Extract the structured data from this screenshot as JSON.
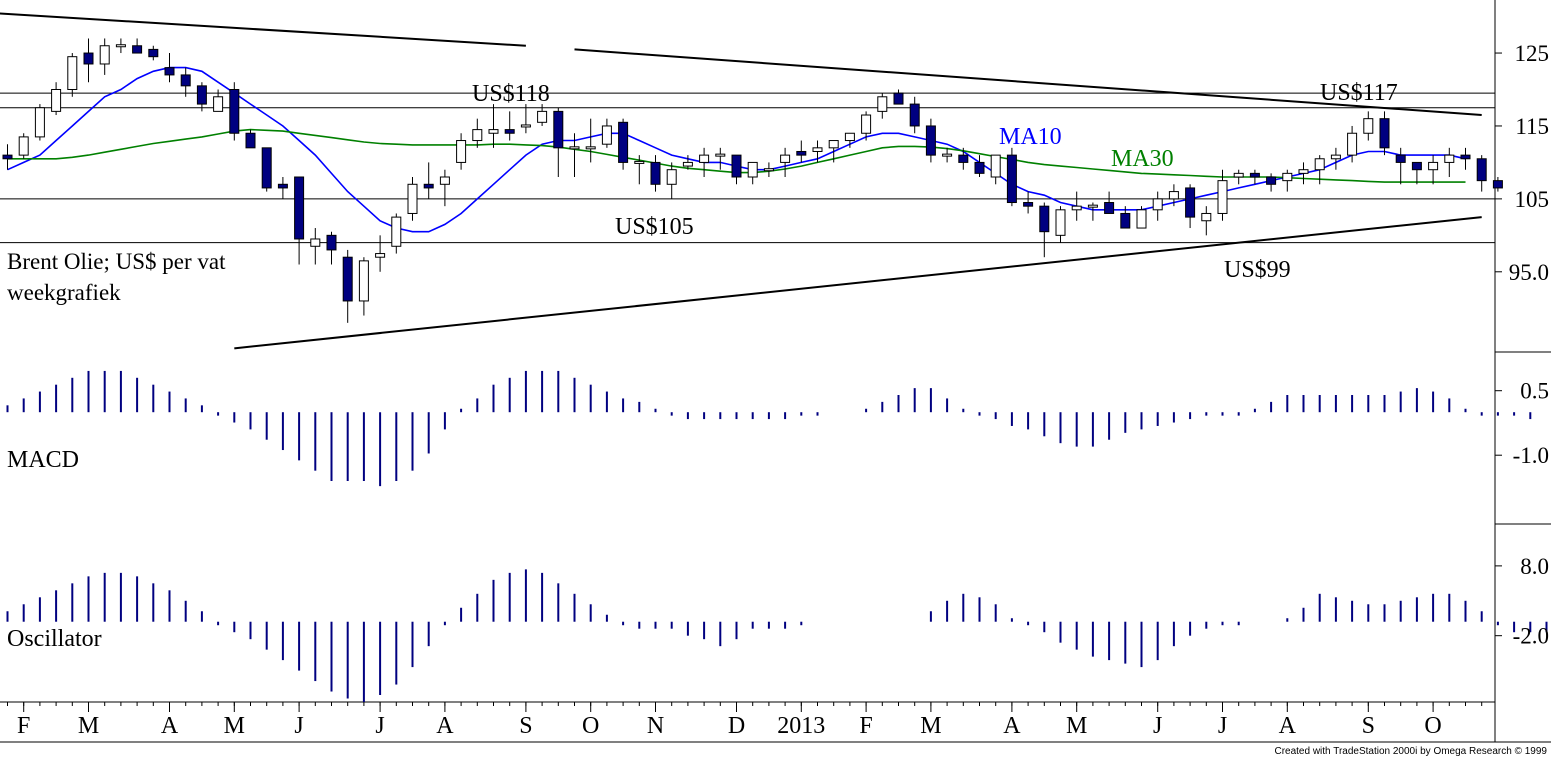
{
  "chart_data": [
    {
      "type": "candlestick",
      "panel": "price",
      "title": "Brent Olie; US$ per vat",
      "subtitle": "weekgrafiek",
      "y_ticks": [
        "125",
        "115",
        "105",
        "95.0"
      ],
      "y_tick_values": [
        125,
        115,
        105,
        95
      ],
      "ylim": [
        84,
        132
      ],
      "x_month_labels": [
        "F",
        "M",
        "A",
        "M",
        "J",
        "J",
        "A",
        "S",
        "O",
        "N",
        "D",
        "2013",
        "F",
        "M",
        "A",
        "M",
        "J",
        "J",
        "A",
        "S",
        "O"
      ],
      "x_month_weeks": [
        1,
        5,
        10,
        14,
        18,
        23,
        27,
        32,
        36,
        40,
        45,
        49,
        53,
        57,
        62,
        66,
        71,
        75,
        79,
        84,
        88
      ],
      "candles": [
        [
          111,
          112.5,
          109,
          110.5
        ],
        [
          111,
          114,
          110.5,
          113.5
        ],
        [
          113.5,
          118,
          113,
          117.5
        ],
        [
          117,
          121,
          116.5,
          120
        ],
        [
          120,
          125,
          119,
          124.5
        ],
        [
          125,
          127,
          121,
          123.5
        ],
        [
          123.5,
          127,
          122,
          126
        ],
        [
          126,
          127,
          125,
          126
        ],
        [
          126,
          127,
          125,
          125
        ],
        [
          125.5,
          126,
          124,
          124.5
        ],
        [
          123,
          125,
          121,
          122
        ],
        [
          122,
          123,
          119,
          120.5
        ],
        [
          120.5,
          121,
          117,
          118
        ],
        [
          117,
          120,
          117,
          119
        ],
        [
          120,
          121,
          113,
          114
        ],
        [
          114,
          114.5,
          112,
          112
        ],
        [
          112,
          112,
          106,
          106.5
        ],
        [
          107,
          108,
          105,
          106.5
        ],
        [
          108,
          108,
          96,
          99.5
        ],
        [
          98.5,
          101,
          96,
          99.5
        ],
        [
          100,
          100.5,
          96,
          98
        ],
        [
          97,
          98,
          88,
          91
        ],
        [
          91,
          97,
          89,
          96.5
        ],
        [
          97,
          100,
          95,
          97.5
        ],
        [
          98.5,
          103,
          97.5,
          102.5
        ],
        [
          103,
          108,
          102,
          107
        ],
        [
          107,
          110,
          105,
          106.5
        ],
        [
          107,
          109,
          104,
          108
        ],
        [
          110,
          114,
          109,
          113
        ],
        [
          113,
          116,
          112,
          114.5
        ],
        [
          114,
          118,
          112,
          114.5
        ],
        [
          114.5,
          117,
          113,
          114
        ],
        [
          115,
          118,
          114,
          115
        ],
        [
          115.5,
          118,
          115,
          117
        ],
        [
          117,
          117.5,
          108,
          112
        ],
        [
          112,
          114,
          108,
          112
        ],
        [
          112,
          116,
          110,
          112
        ],
        [
          112.5,
          116,
          112,
          115
        ],
        [
          115.5,
          116,
          109,
          110
        ],
        [
          110,
          111,
          107,
          110
        ],
        [
          110,
          111,
          106,
          107
        ],
        [
          107,
          110,
          105,
          109
        ],
        [
          109.5,
          111,
          109,
          110
        ],
        [
          110,
          112,
          108,
          111
        ],
        [
          111,
          112,
          109,
          111
        ],
        [
          111,
          111,
          107,
          108
        ],
        [
          108,
          110,
          107,
          110
        ],
        [
          109,
          110,
          108,
          109
        ],
        [
          110,
          112,
          108,
          111
        ],
        [
          111.5,
          113,
          110,
          111
        ],
        [
          111.5,
          113,
          110,
          112
        ],
        [
          112,
          113,
          110,
          113
        ],
        [
          113,
          114,
          112,
          114
        ],
        [
          114,
          117,
          113,
          116.5
        ],
        [
          117,
          119.5,
          116,
          119
        ],
        [
          119.5,
          120,
          118,
          118
        ],
        [
          118,
          119,
          114,
          115
        ],
        [
          115,
          116,
          110,
          111
        ],
        [
          111,
          112,
          110,
          111
        ],
        [
          111,
          112,
          109,
          110
        ],
        [
          110,
          111,
          108,
          108.5
        ],
        [
          108,
          111,
          107,
          111
        ],
        [
          111,
          112,
          104,
          104.5
        ],
        [
          104.5,
          106,
          103,
          104
        ],
        [
          104,
          104.5,
          97,
          100.5
        ],
        [
          100,
          104,
          99,
          103.5
        ],
        [
          103.5,
          106,
          102,
          104
        ],
        [
          104,
          104.5,
          102,
          104
        ],
        [
          104.5,
          106,
          103,
          103
        ],
        [
          103,
          104,
          101,
          101
        ],
        [
          101,
          104,
          101,
          103.5
        ],
        [
          103.5,
          106,
          102,
          105
        ],
        [
          105,
          107,
          104,
          106
        ],
        [
          106.5,
          107,
          101,
          102.5
        ],
        [
          102,
          104,
          100,
          103
        ],
        [
          103,
          109,
          102,
          107.5
        ],
        [
          108,
          109,
          107,
          108.5
        ],
        [
          108.5,
          109,
          107,
          108
        ],
        [
          108,
          108.5,
          106,
          107
        ],
        [
          107.5,
          109,
          106,
          108.5
        ],
        [
          108.5,
          110,
          107,
          109
        ],
        [
          109,
          111,
          107,
          110.5
        ],
        [
          110.5,
          112,
          109,
          111
        ],
        [
          111,
          115,
          110,
          114
        ],
        [
          114,
          117,
          113,
          116
        ],
        [
          116,
          117,
          111,
          112
        ],
        [
          111,
          112,
          107,
          110
        ],
        [
          110,
          110,
          107,
          109
        ],
        [
          109,
          111,
          107,
          110
        ],
        [
          110,
          112,
          108,
          111
        ],
        [
          111,
          112,
          109,
          110.5
        ],
        [
          110.5,
          111,
          106,
          107.5
        ],
        [
          107.5,
          108,
          106,
          106.5
        ]
      ],
      "series": [
        {
          "name": "MA10",
          "color": "#0000ff",
          "values": [
            109,
            110,
            111,
            113,
            115,
            117,
            119,
            120,
            121.5,
            122.5,
            123,
            123,
            122.5,
            121,
            119.5,
            118,
            116.5,
            115,
            113,
            111,
            108.5,
            106,
            104,
            102,
            101,
            100.5,
            100.5,
            101.5,
            103,
            105,
            107,
            109,
            111,
            112.5,
            113,
            113,
            113.5,
            114,
            114,
            113,
            112,
            111,
            110.5,
            110,
            110,
            109.5,
            109,
            109,
            109.5,
            110,
            110.5,
            111.5,
            112.5,
            113.5,
            114,
            114,
            113.5,
            113,
            112.5,
            111.5,
            110,
            108.5,
            107,
            106,
            105.5,
            104.5,
            104,
            103.5,
            103.5,
            103.5,
            103.5,
            104,
            104.5,
            105,
            105.5,
            106,
            106.5,
            107,
            107.5,
            108,
            108.5,
            109,
            110,
            111,
            111.5,
            111.5,
            111,
            111,
            111,
            111,
            110.5
          ]
        },
        {
          "name": "MA30",
          "color": "#008000",
          "values": [
            110.5,
            110.5,
            110.5,
            110.5,
            110.7,
            111,
            111.4,
            111.8,
            112.2,
            112.6,
            112.9,
            113.2,
            113.5,
            113.9,
            114.3,
            114.5,
            114.4,
            114.3,
            114,
            113.7,
            113.4,
            113.1,
            112.8,
            112.6,
            112.5,
            112.4,
            112.4,
            112.4,
            112.4,
            112.4,
            112.5,
            112.5,
            112.4,
            112.3,
            112.1,
            111.8,
            111.5,
            111.1,
            110.7,
            110.3,
            109.9,
            109.5,
            109.2,
            109,
            108.8,
            108.6,
            108.6,
            108.8,
            109.1,
            109.5,
            110,
            110.5,
            111,
            111.5,
            112,
            112.2,
            112.2,
            112.1,
            111.9,
            111.6,
            111.2,
            110.8,
            110.4,
            110,
            109.7,
            109.5,
            109.3,
            109.1,
            108.9,
            108.7,
            108.5,
            108.4,
            108.3,
            108.2,
            108.1,
            108,
            108,
            108,
            108,
            107.9,
            107.8,
            107.7,
            107.6,
            107.5,
            107.4,
            107.3,
            107.3,
            107.3,
            107.3,
            107.3,
            107.3
          ]
        }
      ],
      "annotations": [
        {
          "text": "US$118",
          "value": 118
        },
        {
          "text": "US$117",
          "value": 117
        },
        {
          "text": "US$105",
          "value": 105
        },
        {
          "text": "US$99",
          "value": 99
        },
        {
          "text": "MA10",
          "color": "#0000ff"
        },
        {
          "text": "MA30",
          "color": "#008000"
        }
      ],
      "horizontal_lines": [
        119.5,
        117.5,
        105,
        99
      ],
      "trendlines": [
        {
          "from": [
            -1,
            130.5
          ],
          "to": [
            32,
            126
          ]
        },
        {
          "from": [
            35,
            125.5
          ],
          "to": [
            91,
            116.5
          ]
        },
        {
          "from": [
            14,
            84.5
          ],
          "to": [
            91,
            102.5
          ]
        }
      ]
    },
    {
      "type": "histogram",
      "panel": "indicator",
      "label": "MACD",
      "color": "#000080",
      "y_ticks": [
        "0.5",
        "-1.0"
      ],
      "y_tick_values": [
        0.5,
        -1.0
      ],
      "ylim": [
        -2.6,
        1.4
      ],
      "values": [
        0.16,
        0.32,
        0.48,
        0.64,
        0.8,
        0.96,
        0.96,
        0.96,
        0.8,
        0.64,
        0.48,
        0.32,
        0.16,
        -0.08,
        -0.24,
        -0.4,
        -0.64,
        -0.88,
        -1.12,
        -1.36,
        -1.6,
        -1.6,
        -1.6,
        -1.72,
        -1.6,
        -1.36,
        -0.96,
        -0.4,
        0.08,
        0.32,
        0.64,
        0.8,
        0.96,
        0.96,
        0.96,
        0.8,
        0.64,
        0.48,
        0.32,
        0.24,
        0.08,
        -0.08,
        -0.16,
        -0.16,
        -0.16,
        -0.16,
        -0.16,
        -0.16,
        -0.16,
        -0.08,
        -0.08,
        0,
        0,
        0.08,
        0.24,
        0.4,
        0.56,
        0.56,
        0.32,
        0.08,
        -0.08,
        -0.16,
        -0.32,
        -0.4,
        -0.56,
        -0.72,
        -0.8,
        -0.8,
        -0.64,
        -0.48,
        -0.4,
        -0.32,
        -0.24,
        -0.16,
        -0.08,
        -0.08,
        -0.08,
        0.08,
        0.24,
        0.4,
        0.4,
        0.4,
        0.4,
        0.4,
        0.4,
        0.4,
        0.48,
        0.56,
        0.48,
        0.32,
        0.08,
        -0.08,
        -0.08,
        -0.08,
        -0.16
      ]
    },
    {
      "type": "histogram",
      "panel": "indicator",
      "label": "Oscillator",
      "color": "#000080",
      "y_ticks": [
        "8.0",
        "-2.0"
      ],
      "y_tick_values": [
        8.0,
        -2.0
      ],
      "ylim": [
        -11.5,
        14
      ],
      "values": [
        1.5,
        2.5,
        3.5,
        4.5,
        5.5,
        6.5,
        7.0,
        7.0,
        6.5,
        5.5,
        4.5,
        3.0,
        1.5,
        -0.5,
        -1.5,
        -2.5,
        -4.0,
        -5.5,
        -7.0,
        -8.5,
        -10.0,
        -11.0,
        -11.5,
        -10.5,
        -9.0,
        -6.5,
        -3.5,
        -0.5,
        2.0,
        4.0,
        6.0,
        7.0,
        7.5,
        7.0,
        5.5,
        4.0,
        2.5,
        1.0,
        -0.5,
        -1.0,
        -1.0,
        -1.0,
        -2.0,
        -2.5,
        -3.5,
        -2.5,
        -1.0,
        -1.0,
        -1.0,
        -0.5,
        0,
        0,
        0,
        0,
        0,
        0,
        0,
        1.5,
        3.0,
        4.0,
        3.5,
        2.5,
        0.5,
        -0.5,
        -1.5,
        -3.0,
        -4.0,
        -5.0,
        -5.5,
        -6.0,
        -6.5,
        -5.5,
        -3.5,
        -2.0,
        -1.0,
        -0.5,
        -0.5,
        0,
        0,
        0.5,
        2.0,
        4.0,
        3.5,
        3.0,
        2.5,
        2.5,
        3.0,
        3.5,
        4.0,
        4.0,
        3.0,
        1.5,
        -0.5,
        -1.5,
        -1.5,
        -1.5,
        -3.0
      ]
    }
  ],
  "credit": "Created with TradeStation 2000i by Omega Research © 1999"
}
